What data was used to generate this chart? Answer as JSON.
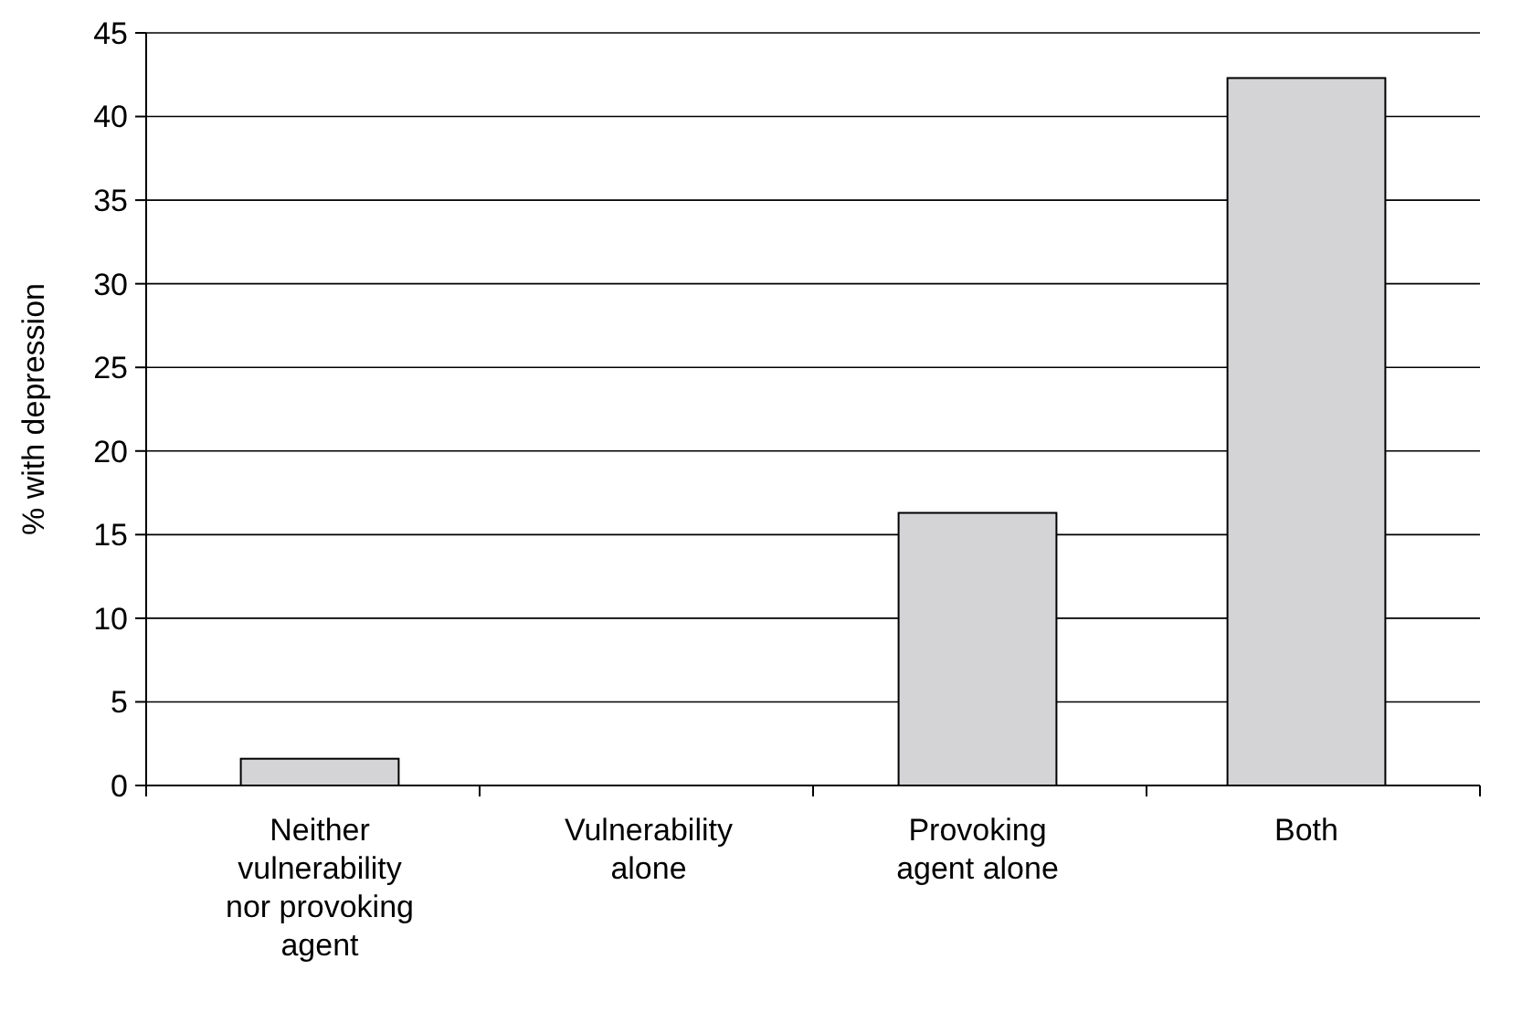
{
  "chart_data": {
    "type": "bar",
    "ylabel": "% with depression",
    "categories": [
      "Neither vulnerability nor provoking agent",
      "Vulnerability alone",
      "Provoking agent alone",
      "Both"
    ],
    "values": [
      1.6,
      0,
      16.3,
      42.3
    ],
    "color": "#d4d4d6",
    "ylim": [
      0,
      45
    ],
    "yticks": [
      0,
      5,
      10,
      15,
      20,
      25,
      30,
      35,
      40,
      45
    ],
    "grid": "y"
  }
}
